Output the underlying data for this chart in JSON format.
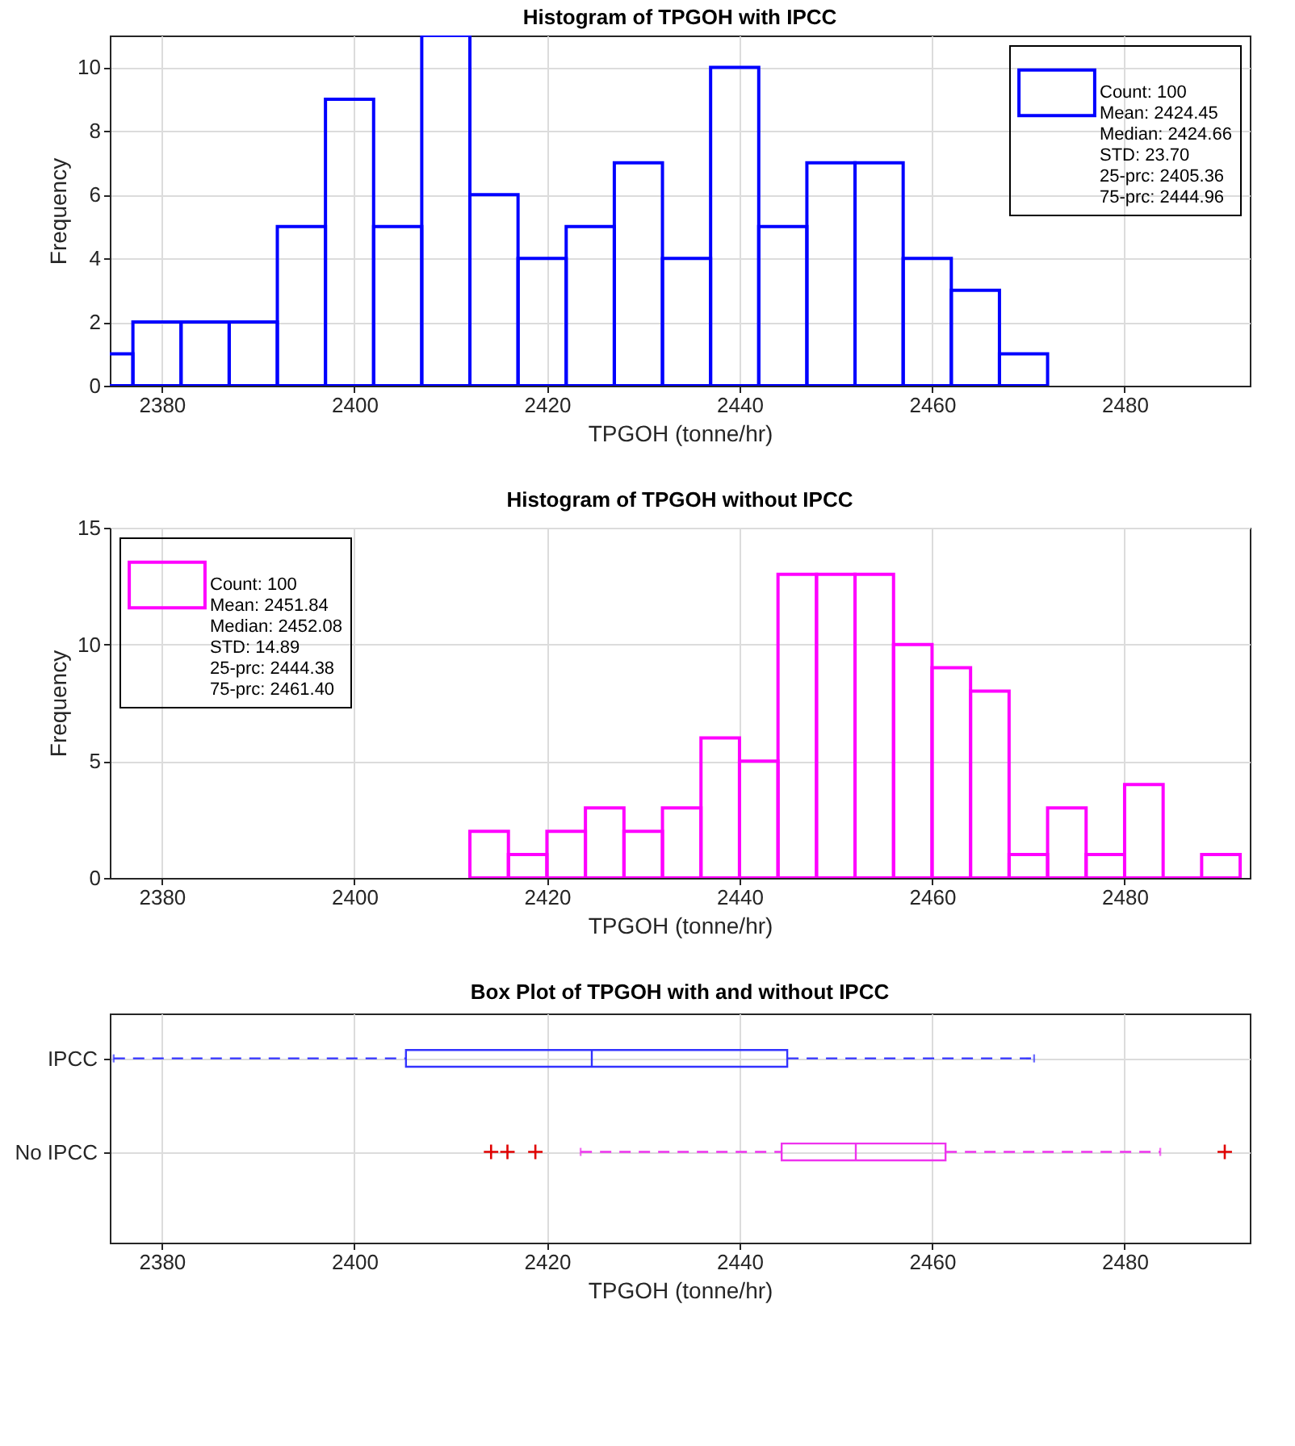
{
  "chart_data": [
    {
      "type": "histogram",
      "title": "Histogram of TPGOH with IPCC",
      "xlabel": "TPGOH (tonne/hr)",
      "ylabel": "Frequency",
      "xlim": [
        2374.6,
        2493
      ],
      "xticks": [
        2380,
        2400,
        2420,
        2440,
        2460,
        2480
      ],
      "ylim": [
        0,
        11
      ],
      "yticks": [
        0,
        2,
        4,
        6,
        8,
        10
      ],
      "grid": true,
      "legend": "top right",
      "bins": [
        2372,
        2377,
        2382,
        2387,
        2392,
        2397,
        2402,
        2407,
        2412,
        2417,
        2422,
        2427,
        2432,
        2437,
        2442,
        2447,
        2452,
        2457,
        2462,
        2467,
        2472
      ],
      "series": [
        {
          "name": "Count: 100\nMean: 2424.45\nMedian: 2424.66\nSTD: 23.70\n25-prc: 2405.36\n75-prc: 2444.96",
          "color": "#0000ff",
          "values": [
            1,
            2,
            2,
            2,
            5,
            9,
            5,
            11,
            6,
            4,
            5,
            7,
            4,
            10,
            5,
            7,
            7,
            4,
            3,
            1
          ]
        }
      ]
    },
    {
      "type": "histogram",
      "title": "Histogram of TPGOH without IPCC",
      "xlabel": "TPGOH (tonne/hr)",
      "ylabel": "Frequency",
      "xlim": [
        2374.6,
        2493
      ],
      "xticks": [
        2380,
        2400,
        2420,
        2440,
        2460,
        2480
      ],
      "ylim": [
        0,
        15
      ],
      "yticks": [
        0,
        5,
        10,
        15
      ],
      "grid": true,
      "legend": "top left",
      "bins": [
        2412,
        2416,
        2420,
        2424,
        2428,
        2432,
        2436,
        2440,
        2444,
        2448,
        2452,
        2456,
        2460,
        2464,
        2468,
        2472,
        2476,
        2480,
        2484,
        2488,
        2492
      ],
      "series": [
        {
          "name": "Count: 100\nMean: 2451.84\nMedian: 2452.08\nSTD: 14.89\n25-prc: 2444.38\n75-prc: 2461.40",
          "color": "#ff00ff",
          "values": [
            2,
            1,
            2,
            3,
            2,
            3,
            6,
            5,
            13,
            13,
            13,
            10,
            9,
            8,
            1,
            3,
            1,
            4,
            0,
            1
          ]
        }
      ]
    },
    {
      "type": "box",
      "title": "Box Plot of TPGOH with and without IPCC",
      "xlabel": "TPGOH (tonne/hr)",
      "orientation": "horizontal",
      "xlim": [
        2374.6,
        2493
      ],
      "xticks": [
        2380,
        2400,
        2420,
        2440,
        2460,
        2480
      ],
      "grid": true,
      "line_style": "dashed",
      "marker": "cross",
      "categories": [
        "IPCC",
        "No IPCC"
      ],
      "colors": [
        "#3333ff",
        "#ee33ee"
      ],
      "boxes": [
        {
          "low": 2375,
          "q1": 2405.36,
          "median": 2424.66,
          "q3": 2444.96,
          "high": 2470.6
        },
        {
          "low": 2423.5,
          "q1": 2444.38,
          "median": 2452.08,
          "q3": 2461.4,
          "high": 2483.7,
          "outliers": [
            2414.2,
            2415.9,
            2418.8,
            2490.4
          ]
        }
      ]
    }
  ]
}
